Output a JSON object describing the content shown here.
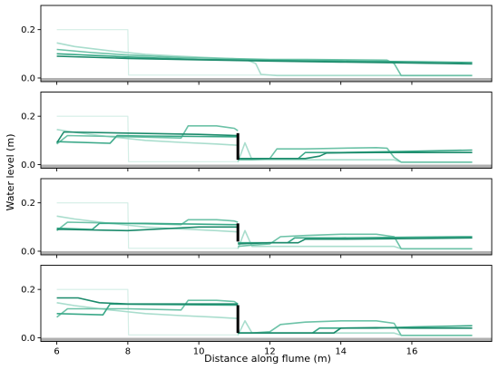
{
  "chart_data": {
    "type": "line",
    "xlabel": "Distance along flume (m)",
    "ylabel": "Water level (m)",
    "xlim": [
      5.55,
      18.25
    ],
    "ylim": [
      -0.015,
      0.3
    ],
    "x_ticks": [
      6,
      8,
      10,
      12,
      14,
      16
    ],
    "y_ticks": [
      0.0,
      0.2
    ],
    "colors": {
      "t1": "#d4eee6",
      "t2": "#a9ddcd",
      "t3": "#6cc2a7",
      "t4": "#3aa888",
      "t5": "#1b8a6b",
      "bed": "#b0b0b0",
      "gate": "#000000"
    },
    "panels": [
      {
        "gate": null,
        "series": [
          {
            "color_key": "t1",
            "x": [
              6.0,
              8.0,
              8.02,
              17.7
            ],
            "y": [
              0.2,
              0.2,
              0.012,
              0.012
            ]
          },
          {
            "color_key": "t2",
            "x": [
              6.0,
              6.5,
              7.5,
              8.5,
              9.5,
              10.5,
              11.3,
              11.6,
              11.75,
              12.2,
              17.7
            ],
            "y": [
              0.145,
              0.13,
              0.112,
              0.098,
              0.09,
              0.083,
              0.078,
              0.06,
              0.015,
              0.01,
              0.01
            ]
          },
          {
            "color_key": "t3",
            "x": [
              6.0,
              7.0,
              8.0,
              9.5,
              11.0,
              12.0,
              13.0,
              14.5,
              15.3,
              15.5,
              15.7,
              17.7
            ],
            "y": [
              0.118,
              0.105,
              0.095,
              0.085,
              0.08,
              0.077,
              0.077,
              0.075,
              0.074,
              0.06,
              0.01,
              0.01
            ]
          },
          {
            "color_key": "t4",
            "x": [
              6.0,
              8.0,
              10.0,
              12.0,
              14.0,
              16.0,
              17.7
            ],
            "y": [
              0.1,
              0.087,
              0.077,
              0.073,
              0.07,
              0.067,
              0.064
            ]
          },
          {
            "color_key": "t5",
            "x": [
              6.0,
              8.0,
              10.0,
              12.0,
              14.0,
              16.0,
              17.7
            ],
            "y": [
              0.09,
              0.081,
              0.075,
              0.07,
              0.066,
              0.062,
              0.058
            ]
          }
        ]
      },
      {
        "gate": {
          "x": 11.1,
          "y0": 0.02,
          "y1": 0.13
        },
        "series": [
          {
            "color_key": "t1",
            "x": [
              6.0,
              8.0,
              8.02,
              11.1
            ],
            "y": [
              0.2,
              0.2,
              0.012,
              0.012
            ]
          },
          {
            "color_key": "t2",
            "x": [
              6.0,
              6.5,
              7.5,
              8.5,
              9.5,
              10.5,
              11.1
            ],
            "y": [
              0.145,
              0.133,
              0.115,
              0.1,
              0.092,
              0.085,
              0.08
            ]
          },
          {
            "color_key": "t2",
            "x": [
              11.1,
              11.3,
              11.5,
              11.7,
              12.0,
              13.0,
              14.0,
              15.0,
              15.5,
              15.7,
              17.7
            ],
            "y": [
              0.01,
              0.09,
              0.02,
              0.02,
              0.02,
              0.02,
              0.02,
              0.02,
              0.02,
              0.01,
              0.01
            ]
          },
          {
            "color_key": "t3",
            "x": [
              6.0,
              6.3,
              8.0,
              9.5,
              9.7,
              10.5,
              11.0,
              11.1
            ],
            "y": [
              0.085,
              0.12,
              0.115,
              0.11,
              0.16,
              0.16,
              0.15,
              0.14
            ]
          },
          {
            "color_key": "t3",
            "x": [
              11.1,
              11.5,
              12.0,
              12.2,
              13.0,
              14.0,
              15.0,
              15.3,
              15.5,
              15.7,
              17.7
            ],
            "y": [
              0.02,
              0.02,
              0.025,
              0.065,
              0.065,
              0.068,
              0.07,
              0.068,
              0.03,
              0.01,
              0.01
            ]
          },
          {
            "color_key": "t4",
            "x": [
              6.0,
              7.5,
              7.7,
              8.5,
              11.0,
              11.1
            ],
            "y": [
              0.095,
              0.088,
              0.12,
              0.118,
              0.115,
              0.115
            ]
          },
          {
            "color_key": "t4",
            "x": [
              11.1,
              12.0,
              12.8,
              13.0,
              14.0,
              16.0,
              17.7
            ],
            "y": [
              0.025,
              0.025,
              0.025,
              0.05,
              0.05,
              0.055,
              0.06
            ]
          },
          {
            "color_key": "t5",
            "x": [
              6.0,
              6.2,
              8.0,
              10.0,
              11.1
            ],
            "y": [
              0.09,
              0.135,
              0.13,
              0.125,
              0.12
            ]
          },
          {
            "color_key": "t5",
            "x": [
              11.1,
              12.0,
              13.0,
              13.4,
              13.6,
              15.0,
              16.0,
              17.7
            ],
            "y": [
              0.025,
              0.025,
              0.025,
              0.035,
              0.048,
              0.05,
              0.05,
              0.05
            ]
          }
        ]
      },
      {
        "gate": {
          "x": 11.1,
          "y0": 0.04,
          "y1": 0.115
        },
        "series": [
          {
            "color_key": "t1",
            "x": [
              6.0,
              8.0,
              8.02,
              11.1
            ],
            "y": [
              0.2,
              0.2,
              0.012,
              0.012
            ]
          },
          {
            "color_key": "t2",
            "x": [
              6.0,
              6.5,
              7.5,
              8.5,
              9.5,
              10.5,
              11.1
            ],
            "y": [
              0.145,
              0.133,
              0.115,
              0.1,
              0.092,
              0.085,
              0.08
            ]
          },
          {
            "color_key": "t2",
            "x": [
              11.1,
              11.3,
              11.5,
              11.7,
              12.0,
              13.0,
              14.0,
              15.0,
              15.5,
              15.7,
              17.7
            ],
            "y": [
              0.01,
              0.085,
              0.02,
              0.02,
              0.02,
              0.02,
              0.02,
              0.02,
              0.02,
              0.01,
              0.01
            ]
          },
          {
            "color_key": "t3",
            "x": [
              6.0,
              6.3,
              8.0,
              9.5,
              9.7,
              10.5,
              11.0,
              11.1
            ],
            "y": [
              0.085,
              0.12,
              0.115,
              0.11,
              0.13,
              0.13,
              0.125,
              0.12
            ]
          },
          {
            "color_key": "t3",
            "x": [
              11.1,
              11.5,
              12.0,
              12.3,
              13.0,
              14.0,
              15.0,
              15.5,
              15.7,
              17.7
            ],
            "y": [
              0.02,
              0.025,
              0.03,
              0.06,
              0.065,
              0.07,
              0.07,
              0.06,
              0.01,
              0.01
            ]
          },
          {
            "color_key": "t4",
            "x": [
              6.0,
              7.0,
              7.2,
              8.5,
              11.0,
              11.1
            ],
            "y": [
              0.095,
              0.09,
              0.115,
              0.115,
              0.11,
              0.11
            ]
          },
          {
            "color_key": "t4",
            "x": [
              11.1,
              12.0,
              12.5,
              12.7,
              14.0,
              16.0,
              17.7
            ],
            "y": [
              0.035,
              0.035,
              0.035,
              0.055,
              0.055,
              0.058,
              0.06
            ]
          },
          {
            "color_key": "t5",
            "x": [
              6.0,
              6.2,
              8.0,
              10.0,
              11.1
            ],
            "y": [
              0.09,
              0.09,
              0.085,
              0.1,
              0.1
            ]
          },
          {
            "color_key": "t5",
            "x": [
              11.1,
              12.0,
              12.8,
              13.0,
              14.0,
              16.0,
              17.7
            ],
            "y": [
              0.03,
              0.035,
              0.035,
              0.05,
              0.05,
              0.052,
              0.055
            ]
          }
        ]
      },
      {
        "gate": {
          "x": 11.1,
          "y0": 0.02,
          "y1": 0.135
        },
        "series": [
          {
            "color_key": "t1",
            "x": [
              6.0,
              8.0,
              8.02,
              11.1
            ],
            "y": [
              0.2,
              0.2,
              0.012,
              0.012
            ]
          },
          {
            "color_key": "t2",
            "x": [
              6.0,
              6.5,
              7.5,
              8.5,
              9.5,
              10.5,
              11.1
            ],
            "y": [
              0.145,
              0.133,
              0.115,
              0.1,
              0.092,
              0.085,
              0.08
            ]
          },
          {
            "color_key": "t2",
            "x": [
              11.1,
              11.3,
              11.5,
              11.7,
              12.0,
              13.0,
              14.0,
              15.0,
              15.5,
              15.7,
              17.7
            ],
            "y": [
              0.01,
              0.07,
              0.02,
              0.02,
              0.02,
              0.02,
              0.02,
              0.02,
              0.02,
              0.01,
              0.01
            ]
          },
          {
            "color_key": "t3",
            "x": [
              6.0,
              6.3,
              8.0,
              9.5,
              9.7,
              10.5,
              11.0,
              11.1
            ],
            "y": [
              0.085,
              0.12,
              0.12,
              0.115,
              0.155,
              0.155,
              0.15,
              0.14
            ]
          },
          {
            "color_key": "t3",
            "x": [
              11.1,
              11.5,
              12.0,
              12.3,
              13.0,
              14.0,
              15.0,
              15.5,
              15.7,
              17.7
            ],
            "y": [
              0.02,
              0.02,
              0.025,
              0.055,
              0.065,
              0.07,
              0.07,
              0.06,
              0.01,
              0.01
            ]
          },
          {
            "color_key": "t4",
            "x": [
              6.0,
              7.3,
              7.5,
              8.5,
              11.0,
              11.1
            ],
            "y": [
              0.1,
              0.095,
              0.14,
              0.138,
              0.135,
              0.135
            ]
          },
          {
            "color_key": "t4",
            "x": [
              11.1,
              12.0,
              13.2,
              13.4,
              15.0,
              16.0,
              17.7
            ],
            "y": [
              0.02,
              0.02,
              0.02,
              0.04,
              0.04,
              0.045,
              0.05
            ]
          },
          {
            "color_key": "t5",
            "x": [
              6.0,
              6.6,
              7.2,
              8.0,
              10.0,
              11.1
            ],
            "y": [
              0.165,
              0.165,
              0.145,
              0.14,
              0.14,
              0.14
            ]
          },
          {
            "color_key": "t5",
            "x": [
              11.1,
              12.0,
              13.0,
              13.8,
              14.0,
              15.0,
              16.0,
              17.7
            ],
            "y": [
              0.02,
              0.02,
              0.02,
              0.02,
              0.04,
              0.042,
              0.04,
              0.04
            ]
          }
        ]
      }
    ]
  }
}
